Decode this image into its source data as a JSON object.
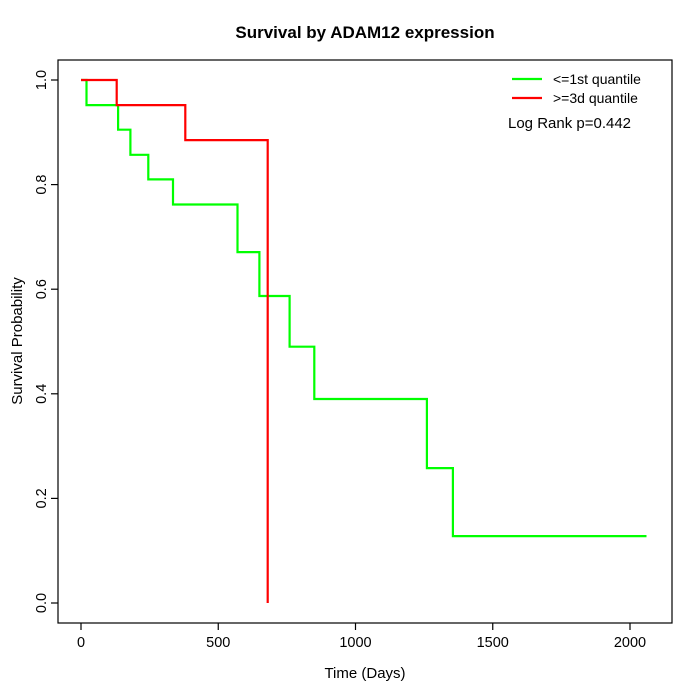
{
  "figure": {
    "title": "Survival by ADAM12 expression"
  },
  "chart_data": {
    "type": "line",
    "subtype": "kaplan-meier-step",
    "title": "Survival by ADAM12 expression",
    "xlabel": "Time (Days)",
    "ylabel": "Survival Probability",
    "annotation": "Log Rank p=0.442",
    "p_value": "0.442",
    "grid": "off",
    "x_axis": {
      "ticks": [
        0,
        500,
        1000,
        1500,
        2000
      ],
      "tick_labels": [
        "0",
        "500",
        "1000",
        "1500",
        "2000"
      ],
      "range_days": [
        0,
        2000
      ]
    },
    "y_axis": {
      "ticks": [
        0.0,
        0.2,
        0.4,
        0.6,
        0.8,
        1.0
      ],
      "tick_labels": [
        "0.0",
        "0.2",
        "0.4",
        "0.6",
        "0.8",
        "1.0"
      ],
      "range": [
        0.0,
        1.0
      ]
    },
    "legend": {
      "position": "top-right",
      "entries": [
        {
          "label": "<=1st quantile",
          "color": "#00FF00"
        },
        {
          "label": ">=3d quantile",
          "color": "#FF0000"
        }
      ]
    },
    "series": [
      {
        "name": "<=1st quantile",
        "color": "#00FF00",
        "points": [
          [
            0,
            1.0
          ],
          [
            20,
            0.952
          ],
          [
            135,
            0.905
          ],
          [
            180,
            0.857
          ],
          [
            245,
            0.81
          ],
          [
            335,
            0.762
          ],
          [
            570,
            0.671
          ],
          [
            650,
            0.587
          ],
          [
            760,
            0.49
          ],
          [
            850,
            0.39
          ],
          [
            1260,
            0.258
          ],
          [
            1355,
            0.128
          ]
        ],
        "end_time": 2060
      },
      {
        "name": ">=3d quantile",
        "color": "#FF0000",
        "points": [
          [
            0,
            1.0
          ],
          [
            130,
            0.952
          ],
          [
            380,
            0.885
          ],
          [
            680,
            0.0
          ]
        ],
        "end_time": 680
      }
    ]
  }
}
